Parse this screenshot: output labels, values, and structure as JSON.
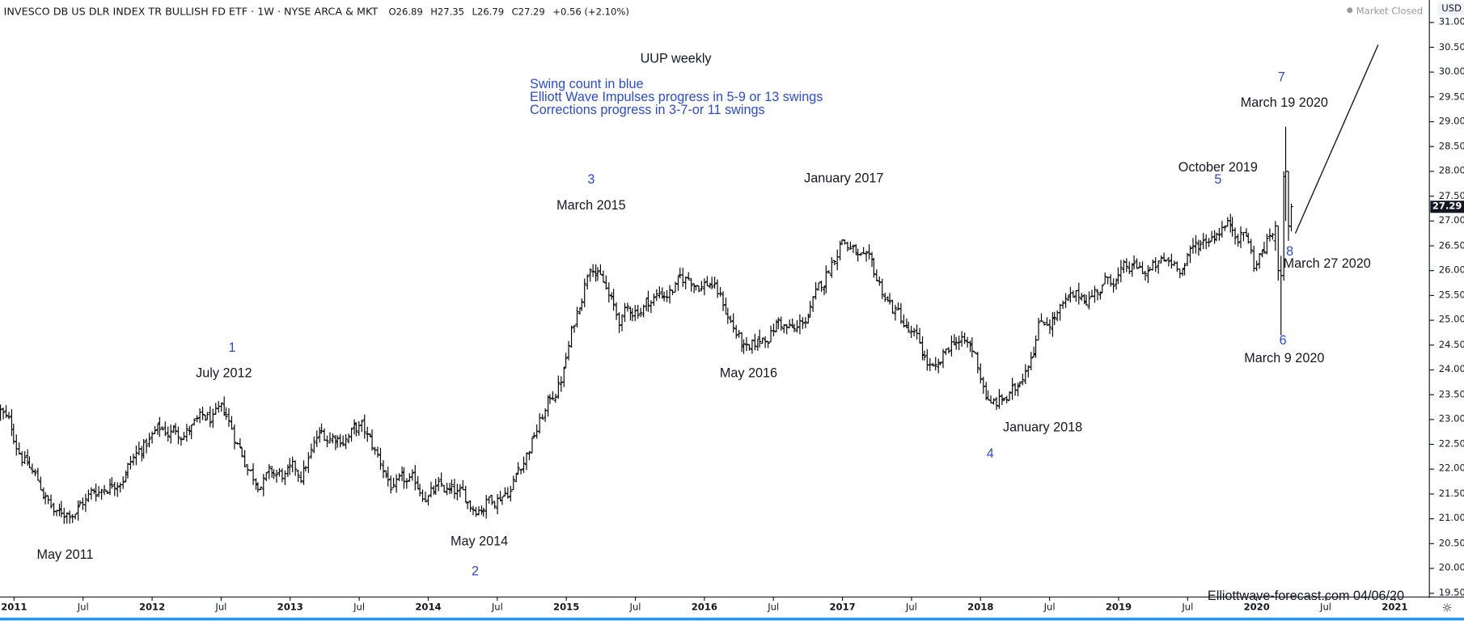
{
  "header": {
    "title": "INVESCO DB US DLR INDEX TR BULLISH FD ETF · 1W · NYSE ARCA & MKT",
    "open": "O26.89",
    "high": "H27.35",
    "low": "L26.79",
    "close": "C27.29",
    "change": "+0.56 (+2.10%)",
    "market_status": "Market Closed"
  },
  "currency": "USD",
  "last_price": "27.29",
  "watermark": "Elliottwave-forecast.com 04/06/20",
  "settings_icon": "gear-icon",
  "colors": {
    "bars": "#000000",
    "swing_count": "#2a4bd7",
    "accent": "#2196f3"
  },
  "chart_data": {
    "type": "ohlc",
    "title": "UUP weekly",
    "notes": [
      "Swing count in blue",
      "Elliott Wave Impulses progress in 5-9 or 13 swings",
      "Corrections progress in 3-7-or 11 swings"
    ],
    "ylim": [
      19.5,
      31.0
    ],
    "y_ticks": [
      "19.50",
      "20.00",
      "20.50",
      "21.00",
      "21.50",
      "22.00",
      "22.50",
      "23.00",
      "23.50",
      "24.00",
      "24.50",
      "25.00",
      "25.50",
      "26.00",
      "26.50",
      "27.00",
      "27.50",
      "28.00",
      "28.50",
      "29.00",
      "29.50",
      "30.00",
      "30.50",
      "31.00"
    ],
    "x_ticks": [
      {
        "t": 2011.0,
        "label": "2011",
        "major": true
      },
      {
        "t": 2011.5,
        "label": "Jul"
      },
      {
        "t": 2012.0,
        "label": "2012",
        "major": true
      },
      {
        "t": 2012.5,
        "label": "Jul"
      },
      {
        "t": 2013.0,
        "label": "2013",
        "major": true
      },
      {
        "t": 2013.5,
        "label": "Jul"
      },
      {
        "t": 2014.0,
        "label": "2014",
        "major": true
      },
      {
        "t": 2014.5,
        "label": "Jul"
      },
      {
        "t": 2015.0,
        "label": "2015",
        "major": true
      },
      {
        "t": 2015.5,
        "label": "Jul"
      },
      {
        "t": 2016.0,
        "label": "2016",
        "major": true
      },
      {
        "t": 2016.5,
        "label": "Jul"
      },
      {
        "t": 2017.0,
        "label": "2017",
        "major": true
      },
      {
        "t": 2017.5,
        "label": "Jul"
      },
      {
        "t": 2018.0,
        "label": "2018",
        "major": true
      },
      {
        "t": 2018.5,
        "label": "Jul"
      },
      {
        "t": 2019.0,
        "label": "2019",
        "major": true
      },
      {
        "t": 2019.5,
        "label": "Jul"
      },
      {
        "t": 2020.0,
        "label": "2020",
        "major": true
      },
      {
        "t": 2020.5,
        "label": "Jul"
      },
      {
        "t": 2021.0,
        "label": "2021",
        "major": true
      }
    ],
    "approx_path": [
      [
        2010.9,
        23.15
      ],
      [
        2011.31,
        21.0
      ],
      [
        2011.71,
        21.8
      ],
      [
        2012.02,
        22.7
      ],
      [
        2012.53,
        23.0
      ],
      [
        2012.73,
        21.9
      ],
      [
        2013.07,
        21.8
      ],
      [
        2013.2,
        22.6
      ],
      [
        2013.51,
        22.8
      ],
      [
        2013.75,
        21.6
      ],
      [
        2014.08,
        21.55
      ],
      [
        2014.32,
        21.25
      ],
      [
        2014.59,
        21.7
      ],
      [
        2014.97,
        23.9
      ],
      [
        2015.07,
        25.1
      ],
      [
        2015.18,
        26.4
      ],
      [
        2015.37,
        24.95
      ],
      [
        2015.58,
        25.4
      ],
      [
        2015.88,
        25.8
      ],
      [
        2016.05,
        25.8
      ],
      [
        2016.32,
        24.2
      ],
      [
        2016.53,
        25.0
      ],
      [
        2016.66,
        24.7
      ],
      [
        2016.83,
        25.5
      ],
      [
        2016.99,
        26.75
      ],
      [
        2017.17,
        26.0
      ],
      [
        2017.41,
        25.05
      ],
      [
        2017.68,
        23.8
      ],
      [
        2017.81,
        24.65
      ],
      [
        2017.95,
        24.3
      ],
      [
        2018.07,
        23.25
      ],
      [
        2018.25,
        23.5
      ],
      [
        2018.42,
        25.0
      ],
      [
        2018.69,
        25.35
      ],
      [
        2018.97,
        25.9
      ],
      [
        2019.24,
        26.0
      ],
      [
        2019.47,
        26.2
      ],
      [
        2019.75,
        27.0
      ],
      [
        2019.92,
        26.8
      ],
      [
        2019.98,
        26.1
      ],
      [
        2020.12,
        26.8
      ]
    ],
    "final_bars": [
      [
        2020.13,
        26.6,
        27.0,
        26.4,
        26.9
      ],
      [
        2020.15,
        26.9,
        26.9,
        25.8,
        26.0
      ],
      [
        2020.17,
        26.0,
        26.3,
        24.7,
        25.9
      ],
      [
        2020.19,
        25.9,
        28.0,
        25.8,
        27.9
      ],
      [
        2020.21,
        27.9,
        28.9,
        27.0,
        28.0
      ],
      [
        2020.23,
        28.0,
        28.0,
        26.6,
        26.9
      ],
      [
        2020.25,
        26.89,
        27.35,
        26.79,
        27.29
      ]
    ],
    "projection_line": [
      [
        2020.28,
        26.75
      ],
      [
        2020.88,
        30.55
      ]
    ],
    "annotations": [
      {
        "id": "may-2011",
        "text": "May 2011",
        "t": 2011.37,
        "p": 20.3,
        "blue": false
      },
      {
        "id": "swing-2",
        "text": "2",
        "t": 2014.34,
        "p": 19.95,
        "blue": true
      },
      {
        "id": "may-2014",
        "text": "May 2014",
        "t": 2014.37,
        "p": 20.55,
        "blue": false
      },
      {
        "id": "swing-1",
        "text": "1",
        "t": 2012.58,
        "p": 24.45,
        "blue": true
      },
      {
        "id": "july-2012",
        "text": "July 2012",
        "t": 2012.52,
        "p": 23.95,
        "blue": false
      },
      {
        "id": "swing-3",
        "text": "3",
        "t": 2015.18,
        "p": 27.85,
        "blue": true
      },
      {
        "id": "march-2015",
        "text": "March 2015",
        "t": 2015.18,
        "p": 27.32,
        "blue": false
      },
      {
        "id": "may-2016",
        "text": "May 2016",
        "t": 2016.32,
        "p": 23.95,
        "blue": false
      },
      {
        "id": "january-2017",
        "text": "January 2017",
        "t": 2017.01,
        "p": 27.87,
        "blue": false
      },
      {
        "id": "january-2018",
        "text": "January 2018",
        "t": 2018.45,
        "p": 22.85,
        "blue": false
      },
      {
        "id": "swing-4",
        "text": "4",
        "t": 2018.07,
        "p": 22.32,
        "blue": true
      },
      {
        "id": "october-2019",
        "text": "October 2019",
        "t": 2019.72,
        "p": 28.1,
        "blue": false
      },
      {
        "id": "swing-5",
        "text": "5",
        "t": 2019.72,
        "p": 27.85,
        "blue": true
      },
      {
        "id": "swing-7",
        "text": "7",
        "t": 2020.18,
        "p": 29.9,
        "blue": true
      },
      {
        "id": "march-19-2020",
        "text": "March 19 2020",
        "t": 2020.2,
        "p": 29.4,
        "blue": false
      },
      {
        "id": "swing-8",
        "text": "8",
        "t": 2020.24,
        "p": 26.4,
        "blue": true
      },
      {
        "id": "march-27-2020",
        "text": "March 27 2020",
        "t": 2020.51,
        "p": 26.15,
        "blue": false
      },
      {
        "id": "swing-6",
        "text": "6",
        "t": 2020.19,
        "p": 24.6,
        "blue": true
      },
      {
        "id": "march-9-2020",
        "text": "March 9 2020",
        "t": 2020.2,
        "p": 24.25,
        "blue": false
      }
    ]
  }
}
